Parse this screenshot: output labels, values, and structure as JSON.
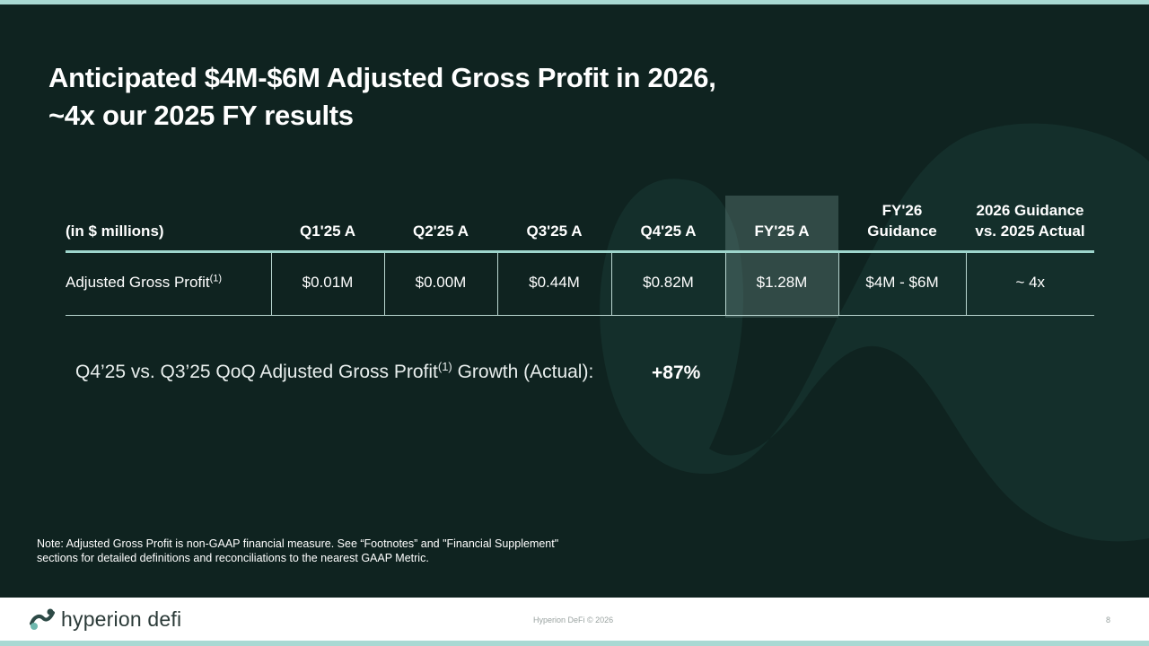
{
  "title": {
    "line1": "Anticipated $4M-$6M Adjusted Gross Profit in 2026,",
    "line2": "~4x our 2025 FY results"
  },
  "table": {
    "headers": {
      "label": "(in $ millions)",
      "q1": "Q1'25 A",
      "q2": "Q2'25 A",
      "q3": "Q3'25 A",
      "q4": "Q4'25 A",
      "fy25": "FY'25 A",
      "fy26_line1": "FY'26",
      "fy26_line2": "Guidance",
      "vs_line1": "2026 Guidance",
      "vs_line2": "vs. 2025 Actual"
    },
    "row": {
      "label": "Adjusted Gross Profit",
      "footnote": "(1)",
      "q1": "$0.01M",
      "q2": "$0.00M",
      "q3": "$0.44M",
      "q4": "$0.82M",
      "fy25": "$1.28M",
      "fy26": "$4M - $6M",
      "vs": "~ 4x"
    }
  },
  "growth": {
    "label_pre": "Q4’25 vs. Q3’25 QoQ Adjusted Gross Profit",
    "footnote": "(1)",
    "label_post": " Growth (Actual):",
    "value": "+87%"
  },
  "note": {
    "line1": "Note: Adjusted Gross Profit is non-GAAP financial measure. See “Footnotes” and \"Financial Supplement\"",
    "line2": "sections for detailed definitions and reconciliations to the nearest GAAP Metric."
  },
  "footer": {
    "logo_text": "hyperion defi",
    "copyright": "Hyperion DeFi © 2026",
    "page_number": "8"
  },
  "colors": {
    "background": "#0f2320",
    "accent": "#a9d9d3",
    "highlight": "#3d5955"
  }
}
